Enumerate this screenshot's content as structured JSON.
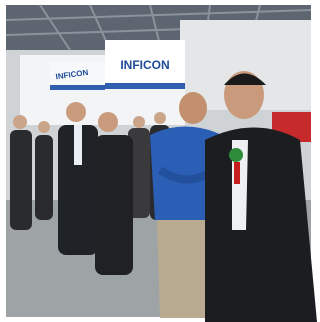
{
  "signs": [
    {
      "text": "INFICON"
    },
    {
      "text": "INFICON"
    }
  ]
}
